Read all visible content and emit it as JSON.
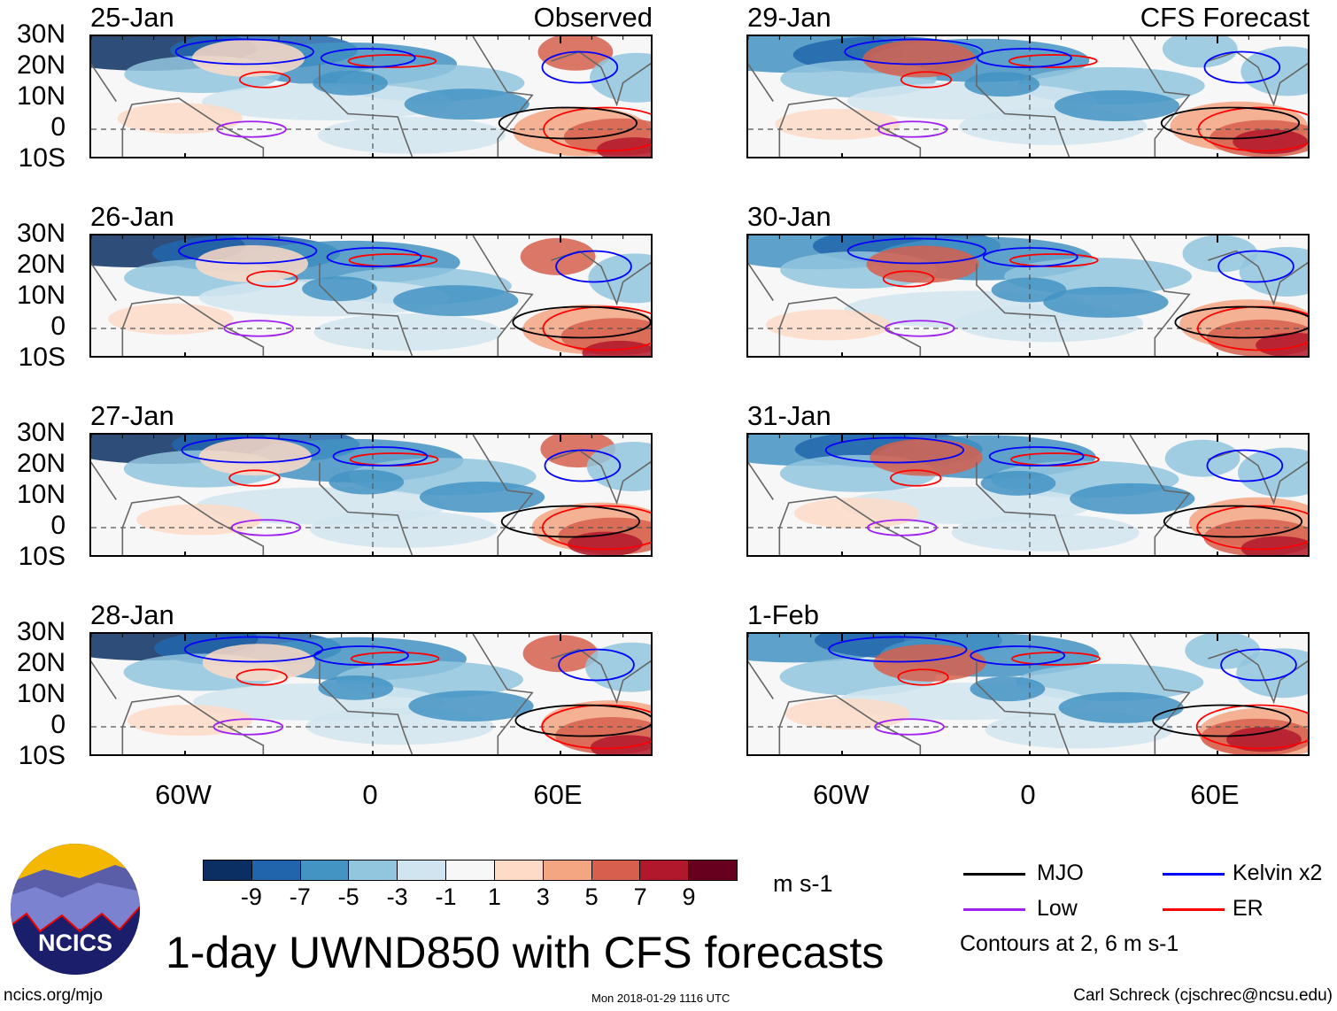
{
  "headers": {
    "observed": "Observed",
    "forecast": "CFS Forecast"
  },
  "panels_left": [
    {
      "date": "25-Jan"
    },
    {
      "date": "26-Jan"
    },
    {
      "date": "27-Jan"
    },
    {
      "date": "28-Jan"
    }
  ],
  "panels_right": [
    {
      "date": "29-Jan"
    },
    {
      "date": "30-Jan"
    },
    {
      "date": "31-Jan"
    },
    {
      "date": "1-Feb"
    }
  ],
  "lat_labels": [
    "30N",
    "20N",
    "10N",
    "0",
    "10S"
  ],
  "lon_labels": [
    "60W",
    "0",
    "60E"
  ],
  "colorbar": {
    "labels": [
      "-9",
      "-7",
      "-5",
      "-3",
      "-1",
      "1",
      "3",
      "5",
      "7",
      "9"
    ],
    "colors": [
      "#0b2f63",
      "#2166ac",
      "#4393c3",
      "#92c5de",
      "#d1e5f0",
      "#f7f7f7",
      "#fddbc7",
      "#f4a582",
      "#d6604d",
      "#b2182b",
      "#67001f"
    ],
    "units": "m s-1"
  },
  "legend": {
    "items": [
      {
        "label": "MJO",
        "color": "#000000"
      },
      {
        "label": "Kelvin x2",
        "color": "#0000ff"
      },
      {
        "label": "Low",
        "color": "#a020f0"
      },
      {
        "label": "ER",
        "color": "#ff0000"
      }
    ],
    "note": "Contours at 2, 6 m s-1"
  },
  "logo_text": "NCICS",
  "title": "1-day UWND850 with CFS forecasts",
  "footer": {
    "url": "ncics.org/mjo",
    "timestamp": "Mon 2018-01-29 1116 UTC",
    "author": "Carl Schreck (cjschrec@ncsu.edu)"
  }
}
